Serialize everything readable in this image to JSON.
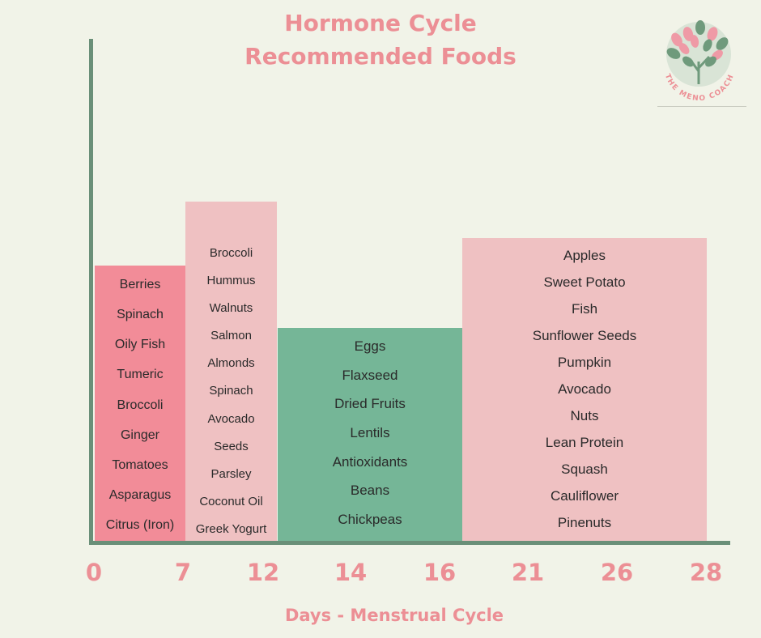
{
  "chart_data": {
    "type": "bar",
    "title": "Hormone Cycle",
    "subtitle": "Recommended Foods",
    "xlabel": "Days - Menstrual Cycle",
    "ylabel": "",
    "x_ticks": [
      "0",
      "7",
      "12",
      "14",
      "16",
      "21",
      "26",
      "28"
    ],
    "legend": "none",
    "grid": false,
    "series": [
      {
        "color": "#f28c98",
        "items": [
          "Berries",
          "Spinach",
          "Oily Fish",
          "Tumeric",
          "Broccoli",
          "Ginger",
          "Tomatoes",
          "Asparagus",
          "Citrus (Iron)"
        ]
      },
      {
        "color": "#efc1c2",
        "items": [
          "Broccoli",
          "Hummus",
          "Walnuts",
          "Salmon",
          "Almonds",
          "Spinach",
          "Avocado",
          "Seeds",
          "Parsley",
          "Coconut Oil",
          "Greek Yogurt"
        ]
      },
      {
        "color": "#75b697",
        "items": [
          "Eggs",
          "Flaxseed",
          "Dried Fruits",
          "Lentils",
          "Antioxidants",
          "Beans",
          "Chickpeas"
        ]
      },
      {
        "color": "#efc1c2",
        "items": [
          "Apples",
          "Sweet Potato",
          "Fish",
          "Sunflower Seeds",
          "Pumpkin",
          "Avocado",
          "Nuts",
          "Lean Protein",
          "Squash",
          "Cauliflower",
          "Pinenuts"
        ]
      }
    ]
  },
  "logo": {
    "text": "THE MENO COACH",
    "colors": {
      "circle": "#d9e4d6",
      "leaf_green": "#6f9a7c",
      "leaf_pink": "#ef9aa6",
      "text": "#ec8f95"
    }
  }
}
